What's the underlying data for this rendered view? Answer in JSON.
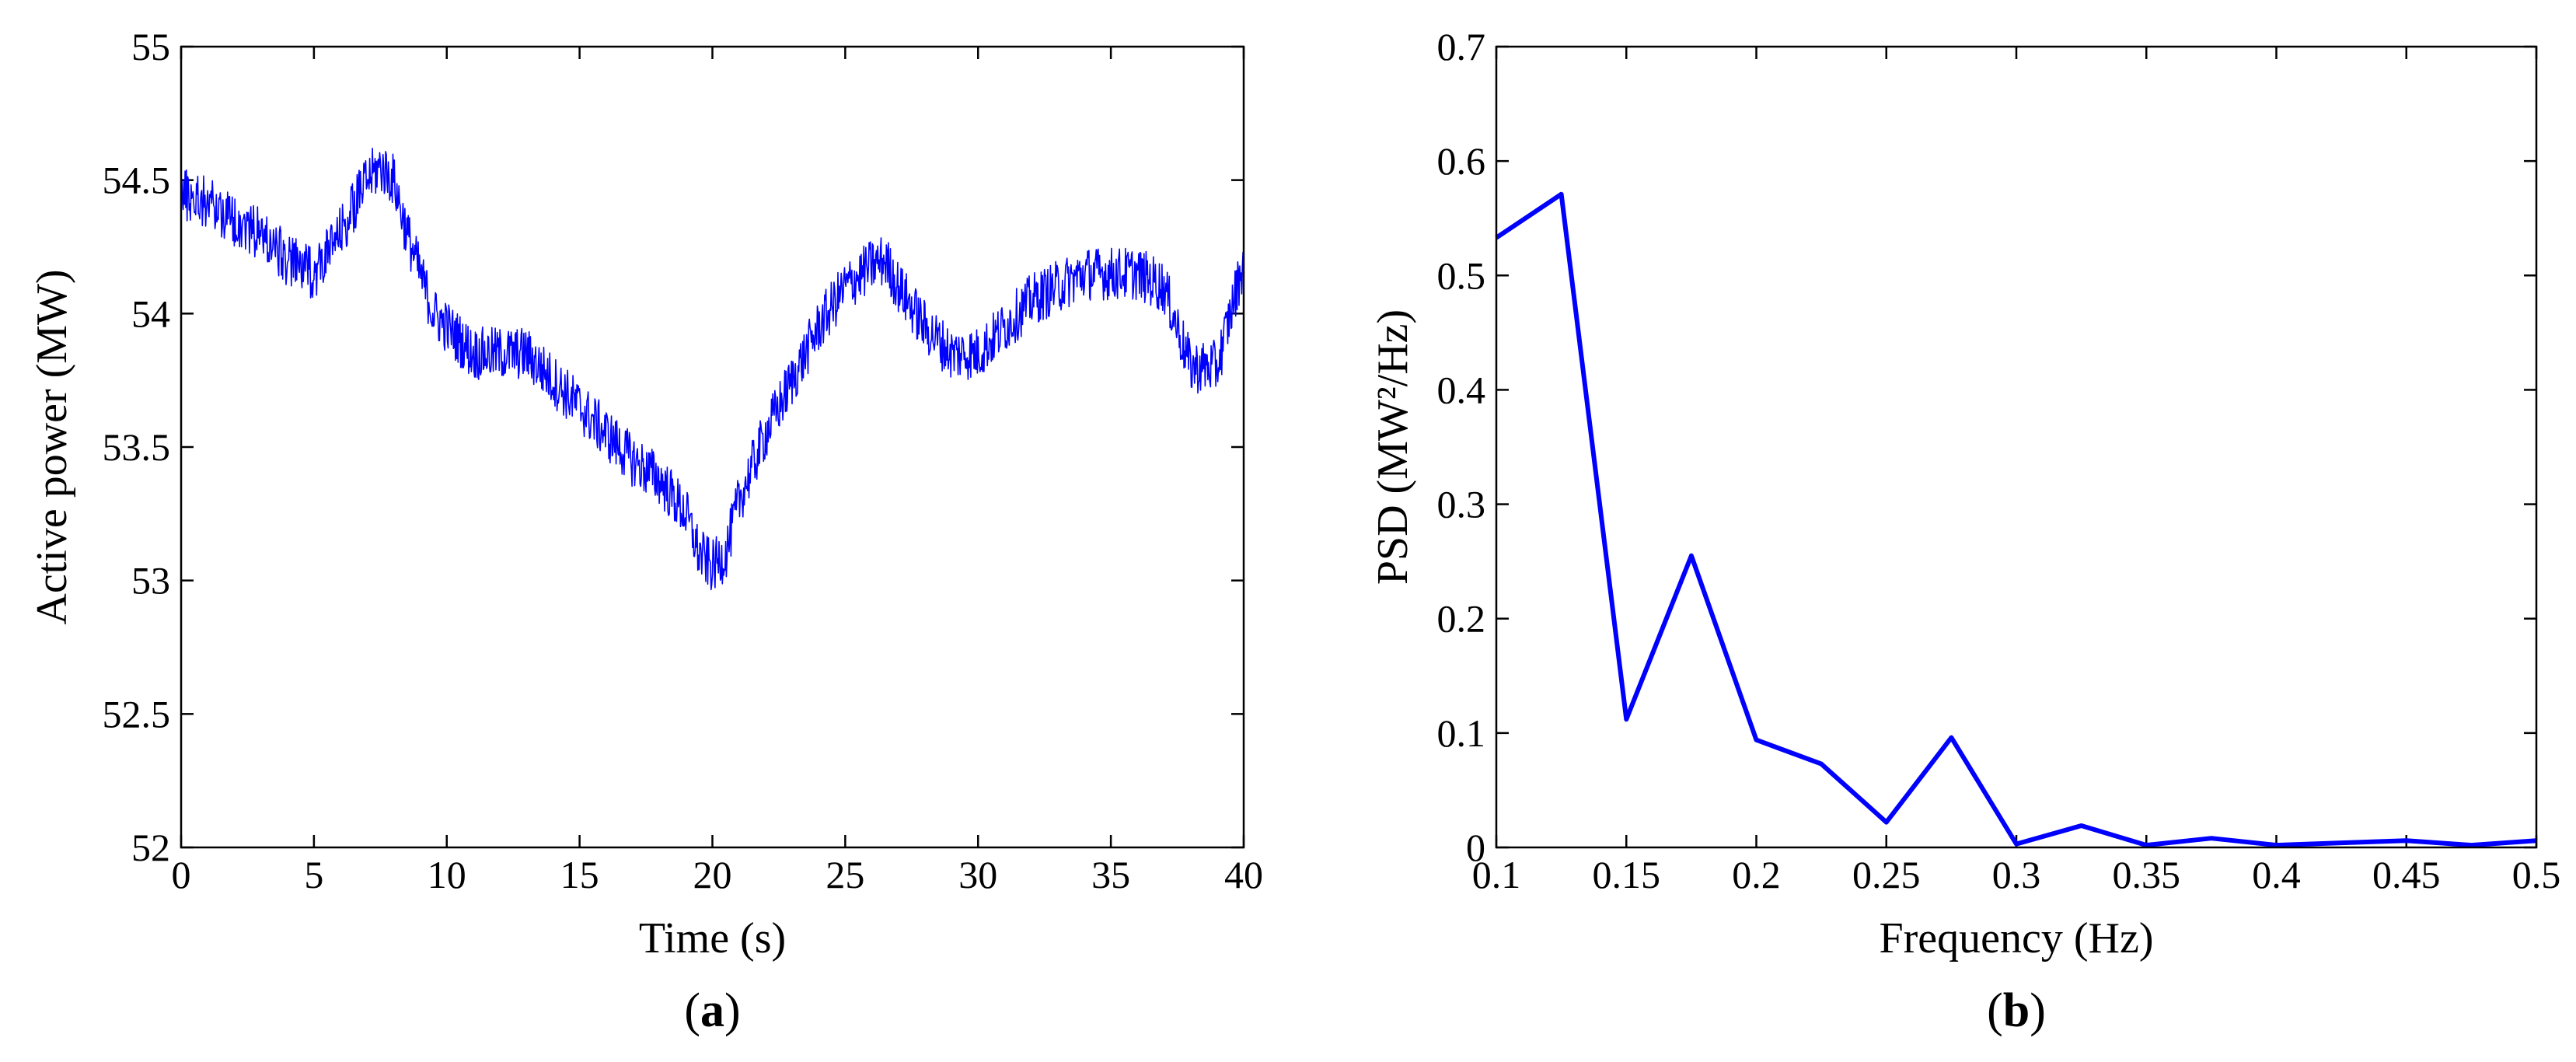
{
  "colors": {
    "series": "#0000ff",
    "axes": "#000000",
    "background": "#ffffff"
  },
  "chart_data": [
    {
      "type": "line",
      "panel": "a",
      "xlabel": "Time (s)",
      "ylabel": "Active power (MW)",
      "xlim": [
        0,
        40
      ],
      "ylim": [
        52,
        55
      ],
      "xticks": [
        0,
        5,
        10,
        15,
        20,
        25,
        30,
        35,
        40
      ],
      "yticks": [
        52,
        52.5,
        53,
        53.5,
        54,
        54.5,
        55
      ],
      "xtick_labels": [
        "0",
        "5",
        "10",
        "15",
        "20",
        "25",
        "30",
        "35",
        "40"
      ],
      "ytick_labels": [
        "52",
        "52.5",
        "53",
        "53.5",
        "54",
        "54.5",
        "55"
      ],
      "grid": false,
      "series": [
        {
          "color": "#0000ff",
          "line_style": "noisy trace",
          "x": [
            0,
            1,
            2,
            3,
            4,
            5,
            6,
            7,
            7.5,
            8,
            8.5,
            9,
            9.5,
            10,
            11,
            12,
            13,
            14,
            15,
            16,
            17,
            18,
            19,
            19.5,
            20,
            20.5,
            21,
            22,
            23,
            24,
            25,
            26,
            26.5,
            27,
            28,
            29,
            30,
            31,
            32,
            33,
            34,
            35,
            36,
            37,
            37.5,
            38,
            39,
            39.5,
            40
          ],
          "y": [
            54.45,
            54.42,
            54.35,
            54.3,
            54.2,
            54.15,
            54.3,
            54.5,
            54.55,
            54.5,
            54.3,
            54.15,
            54.0,
            53.95,
            53.85,
            53.85,
            53.85,
            53.75,
            53.65,
            53.55,
            53.45,
            53.38,
            53.25,
            53.1,
            53.05,
            53.1,
            53.3,
            53.55,
            53.75,
            53.95,
            54.1,
            54.18,
            54.2,
            54.1,
            53.95,
            53.85,
            53.85,
            53.95,
            54.05,
            54.1,
            54.15,
            54.15,
            54.15,
            54.1,
            53.95,
            53.8,
            53.8,
            54.0,
            54.2
          ]
        }
      ]
    },
    {
      "type": "line",
      "panel": "b",
      "xlabel": "Frequency (Hz)",
      "ylabel": "PSD (MW²/Hz)",
      "xlim": [
        0.1,
        0.5
      ],
      "ylim": [
        0,
        0.7
      ],
      "xticks": [
        0.1,
        0.15,
        0.2,
        0.25,
        0.3,
        0.35,
        0.4,
        0.45,
        0.5
      ],
      "yticks": [
        0,
        0.1,
        0.2,
        0.3,
        0.4,
        0.5,
        0.6,
        0.7
      ],
      "xtick_labels": [
        "0.1",
        "0.15",
        "0.2",
        "0.25",
        "0.3",
        "0.35",
        "0.4",
        "0.45",
        "0.5"
      ],
      "ytick_labels": [
        "0",
        "0.1",
        "0.2",
        "0.3",
        "0.4",
        "0.5",
        "0.6",
        "0.7"
      ],
      "grid": false,
      "series": [
        {
          "color": "#0000ff",
          "line_style": "solid",
          "x": [
            0.1,
            0.125,
            0.15,
            0.175,
            0.2,
            0.225,
            0.25,
            0.275,
            0.3,
            0.325,
            0.35,
            0.375,
            0.4,
            0.425,
            0.45,
            0.475,
            0.5
          ],
          "y": [
            0.533,
            0.571,
            0.112,
            0.255,
            0.094,
            0.073,
            0.022,
            0.096,
            0.003,
            0.019,
            0.002,
            0.008,
            0.002,
            0.004,
            0.006,
            0.002,
            0.006
          ]
        }
      ]
    }
  ],
  "panel_labels": {
    "a": {
      "open": "(",
      "letter": "a",
      "close": ")"
    },
    "b": {
      "open": "(",
      "letter": "b",
      "close": ")"
    }
  }
}
